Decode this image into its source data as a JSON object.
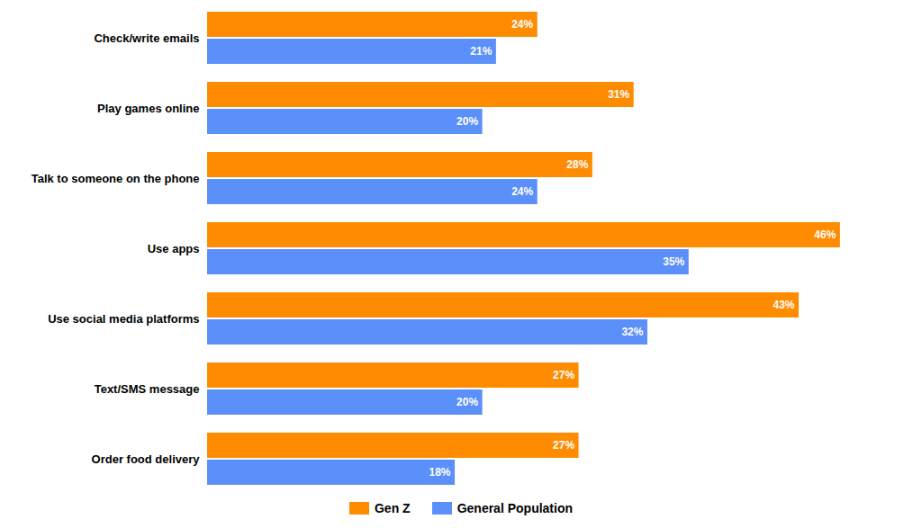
{
  "chart_data": {
    "type": "bar",
    "orientation": "horizontal",
    "categories": [
      "Check/write emails",
      "Play games online",
      "Talk to someone on the phone",
      "Use apps",
      "Use social media platforms",
      "Text/SMS message",
      "Order food delivery"
    ],
    "series": [
      {
        "name": "Gen Z",
        "color": "#FF8C00",
        "values": [
          24,
          31,
          28,
          46,
          43,
          27,
          27
        ],
        "value_labels": [
          "24%",
          "31%",
          "28%",
          "46%",
          "43%",
          "27%",
          "27%"
        ]
      },
      {
        "name": "General Population",
        "color": "#5B8FF9",
        "values": [
          21,
          20,
          24,
          35,
          32,
          20,
          18
        ],
        "value_labels": [
          "21%",
          "20%",
          "24%",
          "35%",
          "32%",
          "20%",
          "18%"
        ]
      }
    ],
    "xlim": [
      0,
      50
    ],
    "data_labels": true,
    "tick_labels": "y",
    "grid": false,
    "legend": "bottom"
  }
}
